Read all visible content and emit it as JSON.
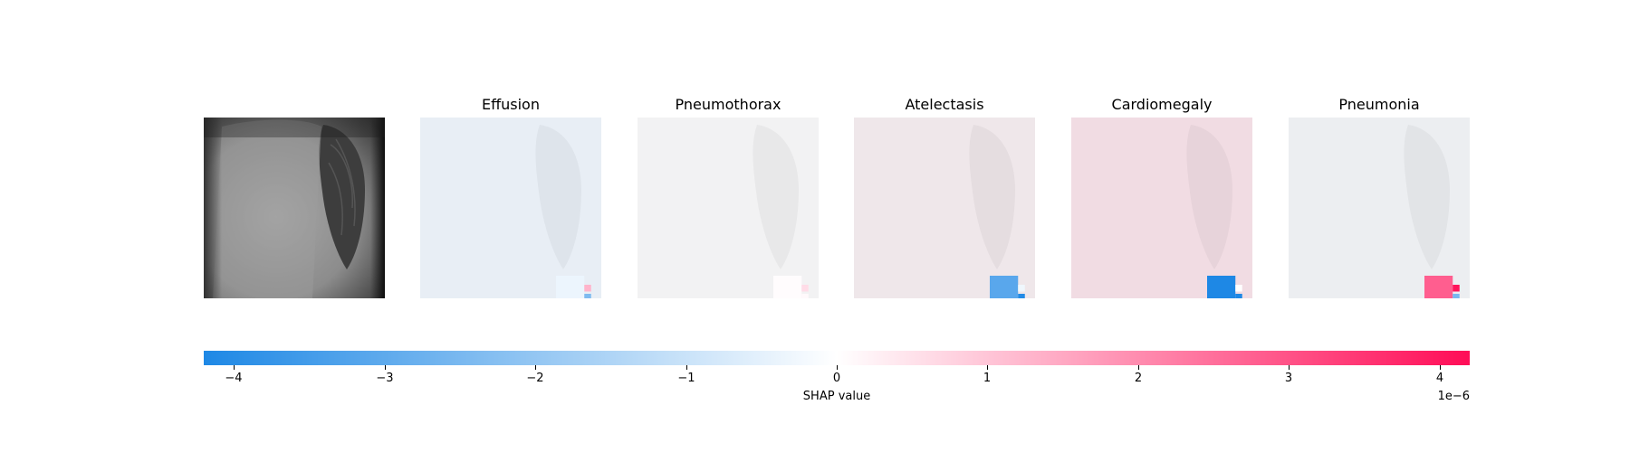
{
  "chart_data": {
    "type": "heatmap",
    "original_image": "chest-xray",
    "panels": [
      {
        "title": "Effusion",
        "tint": "#e8eef5",
        "cells": [
          {
            "col": 6,
            "row": 7,
            "w": 1.25,
            "h": 1.25,
            "value": -3.5e-07
          },
          {
            "col": 7.25,
            "row": 7.4,
            "w": 0.3,
            "h": 0.3,
            "value": 1.3e-06
          },
          {
            "col": 7.25,
            "row": 7.8,
            "w": 0.3,
            "h": 0.3,
            "value": -2.4e-06
          }
        ]
      },
      {
        "title": "Pneumothorax",
        "tint": "#f2f2f3",
        "cells": [
          {
            "col": 6,
            "row": 7,
            "w": 1.25,
            "h": 1.25,
            "value": 5e-08
          },
          {
            "col": 7.25,
            "row": 7.4,
            "w": 0.3,
            "h": 0.3,
            "value": 6e-07
          },
          {
            "col": 7.25,
            "row": 7.8,
            "w": 0.3,
            "h": 0.3,
            "value": 1e-07
          }
        ]
      },
      {
        "title": "Atelectasis",
        "tint": "#efe7ea",
        "cells": [
          {
            "col": 6,
            "row": 7,
            "w": 1.25,
            "h": 1.25,
            "value": -3.1e-06
          },
          {
            "col": 7.25,
            "row": 7.4,
            "w": 0.3,
            "h": 0.3,
            "value": -3e-07
          },
          {
            "col": 7.25,
            "row": 7.8,
            "w": 0.3,
            "h": 0.3,
            "value": -4.1e-06
          }
        ]
      },
      {
        "title": "Cardiomegaly",
        "tint": "#f1dce3",
        "cells": [
          {
            "col": 6,
            "row": 7,
            "w": 1.25,
            "h": 1.25,
            "value": -4.2e-06
          },
          {
            "col": 7.25,
            "row": 7.4,
            "w": 0.3,
            "h": 0.3,
            "value": 0.0
          },
          {
            "col": 7.25,
            "row": 7.8,
            "w": 0.3,
            "h": 0.3,
            "value": -4.2e-06
          }
        ]
      },
      {
        "title": "Pneumonia",
        "tint": "#eceef1",
        "cells": [
          {
            "col": 6,
            "row": 7,
            "w": 1.25,
            "h": 1.25,
            "value": 2.8e-06
          },
          {
            "col": 7.25,
            "row": 7.4,
            "w": 0.3,
            "h": 0.3,
            "value": 4.1e-06
          },
          {
            "col": 7.25,
            "row": 7.8,
            "w": 0.3,
            "h": 0.3,
            "value": -2.5e-06
          }
        ]
      }
    ],
    "colorbar": {
      "label": "SHAP value",
      "exponent_label": "1e−6",
      "vmin": -4.2,
      "vmax": 4.2,
      "ticks": [
        -4,
        -3,
        -2,
        -1,
        0,
        1,
        2,
        3,
        4
      ],
      "tick_labels": [
        "−4",
        "−3",
        "−2",
        "−1",
        "0",
        "1",
        "2",
        "3",
        "4"
      ],
      "color_negative": "#1e88e5",
      "color_zero": "#ffffff",
      "color_positive": "#ff0d57"
    }
  }
}
